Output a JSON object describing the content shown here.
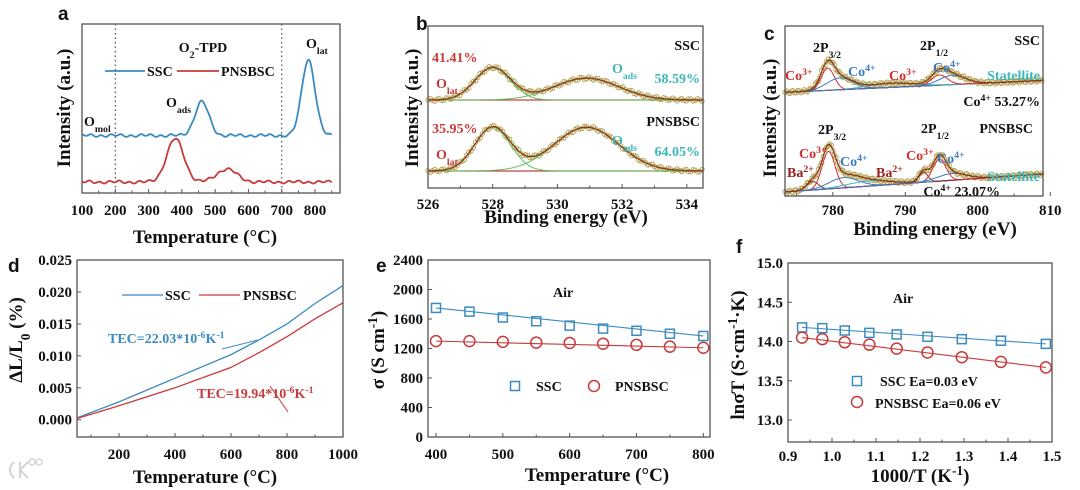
{
  "watermark": "大数跨境",
  "colors": {
    "ssc": "#3b8bc0",
    "pnsbsc": "#c83a3a",
    "teal": "#3bb8b8",
    "fit_green": "#5cc15c",
    "envelope": "#8b3a1a",
    "data_point": "#b0a050",
    "co3": "#d03030",
    "co4": "#3a78c0",
    "ba": "#9a2020"
  },
  "chart_data": [
    {
      "id": "a",
      "type": "line",
      "letter": "a",
      "title": [
        [
          "O",
          ""
        ],
        [
          "2",
          "sub"
        ],
        [
          "-TPD",
          ""
        ]
      ],
      "xlabel": "Temperature (°C)",
      "ylabel": "Intensity (a.u.)",
      "xlim": [
        100,
        875
      ],
      "ylim": [
        0,
        10
      ],
      "xticks": [
        100,
        200,
        300,
        400,
        500,
        600,
        700,
        800
      ],
      "reference_lines_x": [
        200,
        700
      ],
      "legend": [
        "SSC",
        "PNSBSC"
      ],
      "legend_position": "top-center",
      "series": [
        {
          "name": "SSC",
          "baseline": 3.4,
          "peaks": [
            {
              "center": 460,
              "height": 2.0,
              "sigma": 21
            },
            {
              "center": 780,
              "height": 4.5,
              "sigma": 20
            }
          ]
        },
        {
          "name": "PNSBSC",
          "baseline": 0.65,
          "peaks": [
            {
              "center": 380,
              "height": 2.55,
              "sigma": 26
            },
            {
              "center": 535,
              "height": 0.77,
              "sigma": 30
            }
          ]
        }
      ],
      "annotations": [
        [
          [
            "O",
            ""
          ],
          [
            "mol",
            "sub"
          ]
        ],
        [
          [
            "O",
            ""
          ],
          [
            "ads",
            "sub"
          ]
        ],
        [
          [
            "O",
            ""
          ],
          [
            "lat",
            "sub"
          ]
        ]
      ]
    },
    {
      "id": "b",
      "type": "line",
      "letter": "b",
      "xlabel": "Binding  energy (eV)",
      "ylabel": "Intensity (a.u.)",
      "xlim": [
        526,
        534.5
      ],
      "ylim": [
        0,
        10
      ],
      "xticks": [
        526,
        528,
        530,
        532,
        534
      ],
      "spectra": [
        {
          "name": "SSC",
          "baseline": [
            5.43,
            5.43
          ],
          "components": [
            {
              "label": "O_lat",
              "center": 528,
              "height": 2.0,
              "sigma": 0.55
            },
            {
              "label": "O_ads",
              "center": 530.9,
              "height": 1.35,
              "sigma": 1.0
            }
          ]
        },
        {
          "name": "PNSBSC",
          "baseline": [
            1.05,
            1.05
          ],
          "components": [
            {
              "label": "O_lat",
              "center": 528,
              "height": 2.7,
              "sigma": 0.55
            },
            {
              "label": "O_ads",
              "center": 530.9,
              "height": 2.7,
              "sigma": 1.0
            }
          ]
        }
      ],
      "annotations": {
        "ssc": [
          [
            "SSC",
            ""
          ]
        ],
        "ssc_ads": [
          [
            "O",
            ""
          ],
          [
            "ads",
            "sub"
          ]
        ],
        "ssc_ads_pct": [
          [
            "58.59%",
            ""
          ]
        ],
        "ssc_lat_pct": [
          [
            "41.41%",
            ""
          ]
        ],
        "ssc_lat": [
          [
            "O",
            ""
          ],
          [
            "lat",
            "sub"
          ]
        ],
        "pn": [
          [
            "PNSBSC",
            ""
          ]
        ],
        "pn_lat_pct": [
          [
            "35.95%",
            ""
          ]
        ],
        "pn_lat": [
          [
            "O",
            ""
          ],
          [
            "lat",
            "sub"
          ]
        ],
        "pn_ads": [
          [
            "O",
            ""
          ],
          [
            "ads",
            "sub"
          ]
        ],
        "pn_ads_pct": [
          [
            "64.05%",
            ""
          ]
        ]
      }
    },
    {
      "id": "c",
      "type": "line",
      "letter": "c",
      "xlabel": "Binding  energy  (eV)",
      "ylabel": "Intensity (a.u.)",
      "xlim": [
        773.4,
        809
      ],
      "ylim": [
        0,
        10
      ],
      "xticks": [
        780,
        790,
        800,
        810
      ],
      "spectra": [
        {
          "name": "SSC",
          "baseline": [
            6.1,
            6.8
          ],
          "components": [
            {
              "label": "Co3+",
              "center": 779.3,
              "height": 1.3,
              "sigma": 0.9,
              "color": "co3"
            },
            {
              "label": "Co4+",
              "center": 781,
              "height": 0.7,
              "sigma": 1.8,
              "color": "co4"
            },
            {
              "label": "Satellite",
              "center": 788,
              "height": 0.25,
              "sigma": 3,
              "color": "teal"
            },
            {
              "label": "Co3+",
              "center": 794.7,
              "height": 0.6,
              "sigma": 1.1,
              "color": "co3"
            },
            {
              "label": "Co4+",
              "center": 796.5,
              "height": 0.55,
              "sigma": 1.8,
              "color": "co4"
            }
          ]
        },
        {
          "name": "PNSBSC",
          "baseline": [
            0.24,
            1.3
          ],
          "components": [
            {
              "label": "Ba2+",
              "center": 777.2,
              "height": 0.5,
              "sigma": 0.8,
              "color": "ba"
            },
            {
              "label": "Co3+",
              "center": 779.4,
              "height": 2.2,
              "sigma": 0.9,
              "color": "co3"
            },
            {
              "label": "Co4+",
              "center": 781.5,
              "height": 0.6,
              "sigma": 2,
              "color": "co4"
            },
            {
              "label": "Satellite",
              "center": 785,
              "height": 0.3,
              "sigma": 3,
              "color": "teal"
            },
            {
              "label": "Ba2+",
              "center": 792.5,
              "height": 0.6,
              "sigma": 0.6,
              "color": "ba"
            },
            {
              "label": "Co3+",
              "center": 794.7,
              "height": 1.3,
              "sigma": 0.9,
              "color": "co3"
            },
            {
              "label": "Co4+",
              "center": 796.5,
              "height": 0.4,
              "sigma": 2,
              "color": "co4"
            }
          ]
        }
      ],
      "annotations": {
        "ssc": [
          [
            "SSC",
            ""
          ]
        ],
        "ssc_p32": [
          [
            "2P",
            ""
          ],
          [
            "3/2",
            "sub"
          ]
        ],
        "ssc_p12": [
          [
            "2P",
            ""
          ],
          [
            "1/2",
            "sub"
          ]
        ],
        "ssc_co3a": [
          [
            "Co",
            ""
          ],
          [
            "3+",
            "sup"
          ]
        ],
        "ssc_co4a": [
          [
            "Co",
            ""
          ],
          [
            "4+",
            "sup"
          ]
        ],
        "ssc_co3b": [
          [
            "Co",
            ""
          ],
          [
            "3+",
            "sup"
          ]
        ],
        "ssc_co4b": [
          [
            "Co",
            ""
          ],
          [
            "4+",
            "sup"
          ]
        ],
        "ssc_sat": [
          [
            "Statellite",
            ""
          ]
        ],
        "ssc_pct": [
          [
            "Co",
            ""
          ],
          [
            "4+",
            "sup"
          ],
          [
            " 53.27%",
            ""
          ]
        ],
        "pn_p32": [
          [
            "2P",
            ""
          ],
          [
            "3/2",
            "sub"
          ]
        ],
        "pn_p12": [
          [
            "2P",
            ""
          ],
          [
            "1/2",
            "sub"
          ]
        ],
        "pn": [
          [
            "PNSBSC",
            ""
          ]
        ],
        "pn_co3a": [
          [
            "Co",
            ""
          ],
          [
            "3+",
            "sup"
          ]
        ],
        "pn_ba1": [
          [
            "Ba",
            ""
          ],
          [
            "2+",
            "sup"
          ]
        ],
        "pn_co4a": [
          [
            "Co",
            ""
          ],
          [
            "4+",
            "sup"
          ]
        ],
        "pn_ba2": [
          [
            "Ba",
            ""
          ],
          [
            "2+",
            "sup"
          ]
        ],
        "pn_co3b": [
          [
            "Co",
            ""
          ],
          [
            "3+",
            "sup"
          ]
        ],
        "pn_co4b": [
          [
            "Co",
            ""
          ],
          [
            "4+",
            "sup"
          ]
        ],
        "pn_sat": [
          [
            "Statellite",
            ""
          ]
        ],
        "pn_pct": [
          [
            "Co",
            ""
          ],
          [
            "4+",
            "sup"
          ],
          [
            "  23.07%",
            ""
          ]
        ]
      }
    },
    {
      "id": "d",
      "type": "line",
      "letter": "d",
      "xlabel": "Temperature (°C)",
      "ylabel": [
        [
          "ΔL/L",
          ""
        ],
        [
          "0",
          "sub"
        ],
        [
          " (%)",
          ""
        ]
      ],
      "xlim": [
        50,
        1000
      ],
      "ylim": [
        -0.0027,
        0.025
      ],
      "xticks": [
        200,
        400,
        600,
        800,
        1000
      ],
      "yticks": [
        0.0,
        0.005,
        0.01,
        0.015,
        0.02,
        0.025
      ],
      "ytick_labels": [
        "0.000",
        "0.005",
        "0.010",
        "0.015",
        "0.020",
        "0.025"
      ],
      "legend": [
        "SSC",
        "PNSBSC"
      ],
      "series": [
        {
          "name": "SSC",
          "x": [
            50,
            200,
            400,
            600,
            700,
            800,
            900,
            1000
          ],
          "y": [
            0.0003,
            0.0028,
            0.0065,
            0.0102,
            0.0125,
            0.015,
            0.0182,
            0.021
          ]
        },
        {
          "name": "PNSBSC",
          "x": [
            50,
            200,
            350,
            400,
            600,
            700,
            800,
            900,
            1000
          ],
          "y": [
            0.0002,
            0.0022,
            0.0043,
            0.005,
            0.0082,
            0.0105,
            0.013,
            0.0158,
            0.0183
          ]
        }
      ],
      "annotations": {
        "ssc_tec": [
          [
            "TEC=22.03*10",
            ""
          ],
          [
            "-6",
            "sup"
          ],
          [
            "K",
            ""
          ],
          [
            "-1",
            "sup"
          ]
        ],
        "pn_tec": [
          [
            "TEC=19.94*10",
            ""
          ],
          [
            "-6",
            "sup"
          ],
          [
            "K",
            ""
          ],
          [
            "-1",
            "sup"
          ]
        ]
      }
    },
    {
      "id": "e",
      "type": "scatter",
      "letter": "e",
      "xlabel": "Temperature (°C)",
      "ylabel": [
        [
          "σ (S cm",
          ""
        ],
        [
          "-1",
          "sup"
        ],
        [
          ")",
          ""
        ]
      ],
      "xlim": [
        388,
        810
      ],
      "ylim": [
        0,
        2400
      ],
      "xticks": [
        400,
        500,
        600,
        700,
        800
      ],
      "yticks": [
        0,
        400,
        800,
        1200,
        1600,
        2000,
        2400
      ],
      "ytick_labels": [
        "0",
        "400",
        "800",
        "1200",
        "1600",
        "2000",
        "2400"
      ],
      "condition": "Air",
      "legend": [
        "SSC",
        "PNSBSC"
      ],
      "legend_position": "center",
      "series": [
        {
          "name": "SSC",
          "marker": "square",
          "x": [
            400,
            450,
            500,
            550,
            600,
            650,
            700,
            750,
            800
          ],
          "y": [
            1750,
            1700,
            1620,
            1570,
            1510,
            1470,
            1440,
            1400,
            1370
          ]
        },
        {
          "name": "PNSBSC",
          "marker": "circle",
          "x": [
            400,
            450,
            500,
            550,
            600,
            650,
            700,
            750,
            800
          ],
          "y": [
            1300,
            1300,
            1290,
            1280,
            1275,
            1265,
            1250,
            1225,
            1210
          ]
        }
      ]
    },
    {
      "id": "f",
      "type": "scatter",
      "letter": "f",
      "xlabel": [
        [
          "1000/T (K",
          ""
        ],
        [
          "-1",
          "sup"
        ],
        [
          ")",
          ""
        ]
      ],
      "ylabel": [
        [
          "lnσT (S·cm",
          ""
        ],
        [
          "-1",
          "sup"
        ],
        [
          "·K)",
          ""
        ]
      ],
      "xlim": [
        0.9,
        1.5
      ],
      "ylim": [
        12.72,
        15.0
      ],
      "xticks": [
        0.9,
        1.0,
        1.1,
        1.2,
        1.3,
        1.4,
        1.5
      ],
      "xtick_labels": [
        "0.9",
        "1.0",
        "1.1",
        "1.2",
        "1.3",
        "1.4",
        "1.5"
      ],
      "yticks": [
        13.0,
        13.5,
        14.0,
        14.5,
        15.0
      ],
      "ytick_labels": [
        "13.0",
        "13.5",
        "14.0",
        "14.5",
        "15.0"
      ],
      "condition": "Air",
      "legend": [
        "SSC   Ea=0.03 eV",
        "PNSBSC  Ea=0.06 eV"
      ],
      "series": [
        {
          "name": "SSC",
          "marker": "square",
          "Ea_eV": 0.03,
          "x": [
            0.932,
            0.978,
            1.029,
            1.085,
            1.147,
            1.217,
            1.295,
            1.384,
            1.486
          ],
          "y": [
            14.18,
            14.17,
            14.14,
            14.11,
            14.09,
            14.06,
            14.03,
            14.01,
            13.97
          ]
        },
        {
          "name": "PNSBSC",
          "marker": "circle",
          "Ea_eV": 0.06,
          "x": [
            0.932,
            0.978,
            1.029,
            1.085,
            1.147,
            1.217,
            1.295,
            1.384,
            1.486
          ],
          "y": [
            14.05,
            14.03,
            13.99,
            13.96,
            13.91,
            13.86,
            13.8,
            13.74,
            13.67
          ]
        }
      ]
    }
  ]
}
